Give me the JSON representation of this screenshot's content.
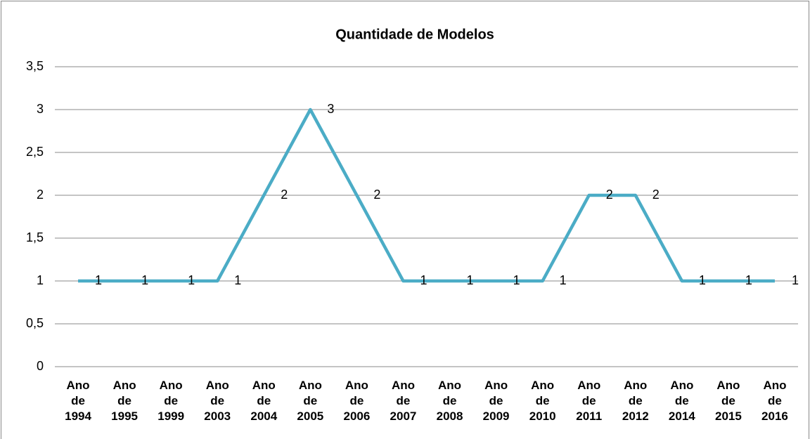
{
  "chart_data": {
    "type": "line",
    "title": "Quantidade de Modelos",
    "categories": [
      "Ano de 1994",
      "Ano de 1995",
      "Ano de 1999",
      "Ano de 2003",
      "Ano de 2004",
      "Ano de 2005",
      "Ano de 2006",
      "Ano de 2007",
      "Ano de 2008",
      "Ano de 2009",
      "Ano de 2010",
      "Ano de 2011",
      "Ano de 2012",
      "Ano de 2014",
      "Ano de 2015",
      "Ano de 2016"
    ],
    "values": [
      1,
      1,
      1,
      1,
      2,
      3,
      2,
      1,
      1,
      1,
      1,
      2,
      2,
      1,
      1,
      1
    ],
    "color": "#4bacc6",
    "ylim": [
      0,
      3.5
    ],
    "yticks": [
      0,
      {
        "value": 0.5,
        "label": "0,5"
      },
      1,
      {
        "value": 1.5,
        "label": "1,5"
      },
      2,
      {
        "value": 2.5,
        "label": "2,5"
      },
      3,
      {
        "value": 3.5,
        "label": "3,5"
      }
    ],
    "grid": true
  }
}
